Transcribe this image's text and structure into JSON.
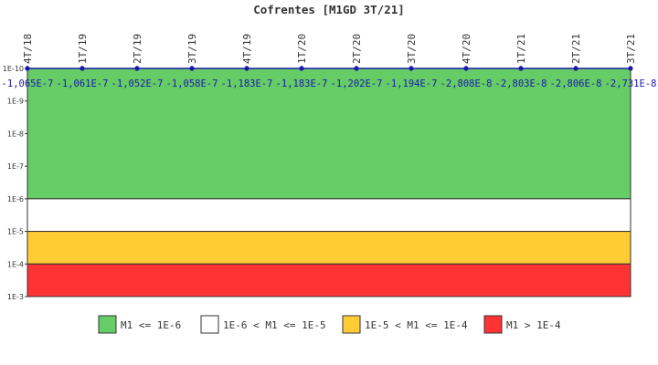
{
  "chart_data": {
    "type": "line",
    "title": "Cofrentes [M1GD 3T/21]",
    "x": [
      "4T/18",
      "1T/19",
      "2T/19",
      "3T/19",
      "4T/19",
      "1T/20",
      "2T/20",
      "3T/20",
      "4T/20",
      "1T/21",
      "2T/21",
      "3T/21"
    ],
    "series": [
      {
        "values": [
          -1.065e-07,
          -1.061e-07,
          -1.052e-07,
          -1.058e-07,
          -1.183e-07,
          -1.183e-07,
          -1.202e-07,
          -1.194e-07,
          -2.808e-08,
          -2.803e-08,
          -2.806e-08,
          -2.731e-08
        ],
        "labels": [
          "-1,065E-7",
          "-1,061E-7",
          "-1,052E-7",
          "-1,058E-7",
          "-1,183E-7",
          "-1,183E-7",
          "-1,202E-7",
          "-1,194E-7",
          "-2,808E-8",
          "-2,803E-8",
          "-2,806E-8",
          "-2,731E-8"
        ],
        "color": "#1a1aaa"
      }
    ],
    "yscale": "log",
    "ylim": [
      1e-10,
      0.001
    ],
    "yticks": [
      "1E-10",
      "1E-9",
      "1E-8",
      "1E-7",
      "1E-6",
      "1E-5",
      "1E-4",
      "1E-3"
    ],
    "bands": [
      {
        "from": 1e-10,
        "to": 1e-06,
        "color": "#66cc66",
        "label": "M1 <= 1E-6"
      },
      {
        "from": 1e-06,
        "to": 1e-05,
        "color": "#ffffff",
        "label": "1E-6 < M1 <= 1E-5"
      },
      {
        "from": 1e-05,
        "to": 0.0001,
        "color": "#ffcc33",
        "label": "1E-5 < M1 <= 1E-4"
      },
      {
        "from": 0.0001,
        "to": 0.001,
        "color": "#ff3333",
        "label": "M1 > 1E-4"
      }
    ],
    "legend_position": "bottom",
    "grid": false
  }
}
